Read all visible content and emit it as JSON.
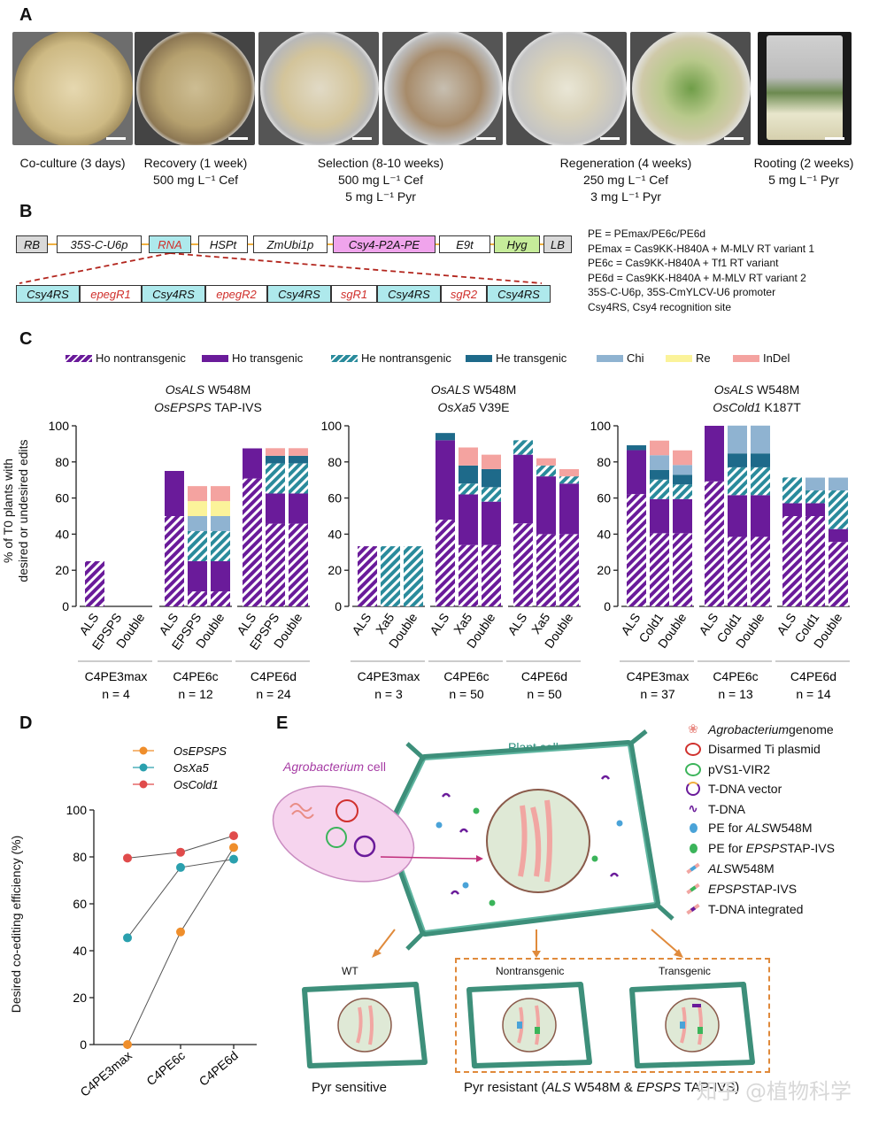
{
  "panel_a": {
    "letter": "A",
    "captions": [
      {
        "l1": "Co-culture (3 days)",
        "l2": "",
        "l3": ""
      },
      {
        "l1": "Recovery (1 week)",
        "l2": "500 mg L⁻¹ Cef",
        "l3": ""
      },
      {
        "l1": "Selection (8-10 weeks)",
        "l2": "500 mg L⁻¹  Cef",
        "l3": "5 mg L⁻¹ Pyr"
      },
      {
        "l1": "Regeneration (4 weeks)",
        "l2": "250 mg L⁻¹ Cef",
        "l3": "3 mg L⁻¹ Pyr"
      },
      {
        "l1": "Rooting (2 weeks)",
        "l2": "5 mg L⁻¹ Pyr",
        "l3": ""
      }
    ]
  },
  "panel_b": {
    "letter": "B",
    "construct": [
      "RB",
      "35S-C-U6p",
      "RNA",
      "HSPt",
      "ZmUbi1p",
      "Csy4-P2A-PE",
      "E9t",
      "Hyg",
      "LB"
    ],
    "array": [
      "Csy4RS",
      "epegR1",
      "Csy4RS",
      "epegR2",
      "Csy4RS",
      "sgR1",
      "Csy4RS",
      "sgR2",
      "Csy4RS"
    ],
    "legend": [
      "PE = PEmax/PE6c/PE6d",
      "PEmax = Cas9KK-H840A + M-MLV RT variant 1",
      "PE6c = Cas9KK-H840A + Tf1 RT variant",
      "PE6d = Cas9KK-H840A + M-MLV RT variant 2",
      "35S-C-U6p, 35S-CmYLCV-U6 promoter",
      "Csy4RS, Csy4 recognition site"
    ]
  },
  "panel_c": {
    "letter": "C",
    "legend": [
      "Ho nontransgenic",
      "Ho transgenic",
      "He nontransgenic",
      "He transgenic",
      "Chi",
      "Re",
      "InDel"
    ],
    "ylabel_1": "% of T0 plants with",
    "ylabel_2": "desired or undesired edits",
    "yticks": [
      "0",
      "20",
      "40",
      "60",
      "80",
      "100"
    ]
  },
  "chart_data": [
    {
      "type": "bar",
      "stacked": true,
      "title_gene_1": "OsALS",
      "title_mut_1": " W548M",
      "title_gene_2": "OsEPSPS",
      "title_mut_2": " TAP-IVS",
      "ylim": [
        0,
        100
      ],
      "categories": [
        "ALS",
        "EPSPS",
        "Double"
      ],
      "groups": [
        {
          "name": "C4PE3max",
          "n": "n = 4",
          "bars": [
            {
              "ho_non": 25,
              "ho_tr": 0,
              "he_non": 0,
              "he_tr": 0,
              "chi": 0,
              "re": 0,
              "indel": 0
            },
            {
              "ho_non": 0,
              "ho_tr": 0,
              "he_non": 0,
              "he_tr": 0,
              "chi": 0,
              "re": 0,
              "indel": 0
            },
            {
              "ho_non": 0,
              "ho_tr": 0,
              "he_non": 0,
              "he_tr": 0,
              "chi": 0,
              "re": 0,
              "indel": 0
            }
          ]
        },
        {
          "name": "C4PE6c",
          "n": "n = 12",
          "bars": [
            {
              "ho_non": 50,
              "ho_tr": 25,
              "he_non": 0,
              "he_tr": 0,
              "chi": 0,
              "re": 0,
              "indel": 0
            },
            {
              "ho_non": 8.3,
              "ho_tr": 16.7,
              "he_non": 16.7,
              "he_tr": 0,
              "chi": 8.3,
              "re": 8.3,
              "indel": 8.3
            },
            {
              "ho_non": 8.3,
              "ho_tr": 16.7,
              "he_non": 16.7,
              "he_tr": 0,
              "chi": 8.3,
              "re": 8.3,
              "indel": 8.3
            }
          ]
        },
        {
          "name": "C4PE6d",
          "n": "n = 24",
          "bars": [
            {
              "ho_non": 70.8,
              "ho_tr": 16.7,
              "he_non": 0,
              "he_tr": 0,
              "chi": 0,
              "re": 0,
              "indel": 0
            },
            {
              "ho_non": 45.8,
              "ho_tr": 16.7,
              "he_non": 16.7,
              "he_tr": 4.2,
              "chi": 0,
              "re": 0,
              "indel": 4.2
            },
            {
              "ho_non": 45.8,
              "ho_tr": 16.7,
              "he_non": 16.7,
              "he_tr": 4.2,
              "chi": 0,
              "re": 0,
              "indel": 4.2
            }
          ]
        }
      ]
    },
    {
      "type": "bar",
      "stacked": true,
      "title_gene_1": "OsALS",
      "title_mut_1": " W548M",
      "title_gene_2": "OsXa5",
      "title_mut_2": " V39E",
      "ylim": [
        0,
        100
      ],
      "categories": [
        "ALS",
        "Xa5",
        "Double"
      ],
      "groups": [
        {
          "name": "C4PE3max",
          "n": "n = 3",
          "bars": [
            {
              "ho_non": 33.3,
              "ho_tr": 0,
              "he_non": 0,
              "he_tr": 0,
              "chi": 0,
              "re": 0,
              "indel": 0
            },
            {
              "ho_non": 0,
              "ho_tr": 0,
              "he_non": 33.3,
              "he_tr": 0,
              "chi": 0,
              "re": 0,
              "indel": 0
            },
            {
              "ho_non": 0,
              "ho_tr": 0,
              "he_non": 33.3,
              "he_tr": 0,
              "chi": 0,
              "re": 0,
              "indel": 0
            }
          ]
        },
        {
          "name": "C4PE6c",
          "n": "n = 50",
          "bars": [
            {
              "ho_non": 48,
              "ho_tr": 44,
              "he_non": 0,
              "he_tr": 4,
              "chi": 0,
              "re": 0,
              "indel": 0
            },
            {
              "ho_non": 34,
              "ho_tr": 28,
              "he_non": 6,
              "he_tr": 10,
              "chi": 0,
              "re": 0,
              "indel": 10
            },
            {
              "ho_non": 34,
              "ho_tr": 24,
              "he_non": 8,
              "he_tr": 10,
              "chi": 0,
              "re": 0,
              "indel": 8
            }
          ]
        },
        {
          "name": "C4PE6d",
          "n": "n = 50",
          "bars": [
            {
              "ho_non": 46,
              "ho_tr": 38,
              "he_non": 8,
              "he_tr": 0,
              "chi": 0,
              "re": 0,
              "indel": 0
            },
            {
              "ho_non": 40,
              "ho_tr": 32,
              "he_non": 6,
              "he_tr": 0,
              "chi": 0,
              "re": 0,
              "indel": 4
            },
            {
              "ho_non": 40,
              "ho_tr": 28,
              "he_non": 4,
              "he_tr": 0,
              "chi": 0,
              "re": 0,
              "indel": 4
            }
          ]
        }
      ]
    },
    {
      "type": "bar",
      "stacked": true,
      "title_gene_1": "OsALS",
      "title_mut_1": " W548M",
      "title_gene_2": "OsCold1",
      "title_mut_2": " K187T",
      "ylim": [
        0,
        100
      ],
      "categories": [
        "ALS",
        "Cold1",
        "Double"
      ],
      "groups": [
        {
          "name": "C4PE3max",
          "n": "n = 37",
          "bars": [
            {
              "ho_non": 62.2,
              "ho_tr": 24.3,
              "he_non": 0,
              "he_tr": 2.7,
              "chi": 0,
              "re": 0,
              "indel": 0
            },
            {
              "ho_non": 40.5,
              "ho_tr": 18.9,
              "he_non": 10.8,
              "he_tr": 5.4,
              "chi": 8.1,
              "re": 0,
              "indel": 8.1
            },
            {
              "ho_non": 40.5,
              "ho_tr": 18.9,
              "he_non": 8.1,
              "he_tr": 5.4,
              "chi": 5.4,
              "re": 0,
              "indel": 8.1
            }
          ]
        },
        {
          "name": "C4PE6c",
          "n": "n = 13",
          "bars": [
            {
              "ho_non": 69.2,
              "ho_tr": 30.8,
              "he_non": 0,
              "he_tr": 0,
              "chi": 0,
              "re": 0,
              "indel": 0
            },
            {
              "ho_non": 38.5,
              "ho_tr": 23.1,
              "he_non": 15.4,
              "he_tr": 7.7,
              "chi": 15.4,
              "re": 0,
              "indel": 0
            },
            {
              "ho_non": 38.5,
              "ho_tr": 23.1,
              "he_non": 15.4,
              "he_tr": 7.7,
              "chi": 15.4,
              "re": 0,
              "indel": 0
            }
          ]
        },
        {
          "name": "C4PE6d",
          "n": "n = 14",
          "bars": [
            {
              "ho_non": 50,
              "ho_tr": 7.1,
              "he_non": 14.3,
              "he_tr": 0,
              "chi": 0,
              "re": 0,
              "indel": 0
            },
            {
              "ho_non": 50,
              "ho_tr": 7.1,
              "he_non": 7.1,
              "he_tr": 0,
              "chi": 7.1,
              "re": 0,
              "indel": 0
            },
            {
              "ho_non": 35.7,
              "ho_tr": 7.1,
              "he_non": 21.4,
              "he_tr": 0,
              "chi": 7.1,
              "re": 0,
              "indel": 0
            }
          ]
        }
      ]
    },
    {
      "type": "line",
      "ylabel": "Desired co-editing efficiency (%)",
      "ylim": [
        0,
        100
      ],
      "yticks": [
        "0",
        "20",
        "40",
        "60",
        "80",
        "100"
      ],
      "x": [
        "C4PE3max",
        "C4PE6c",
        "C4PE6d"
      ],
      "series": [
        {
          "name": "OsEPSPS",
          "color": "#ef8e2b",
          "values": [
            0,
            48,
            84
          ]
        },
        {
          "name": "OsXa5",
          "color": "#2aa0ae",
          "values": [
            45.5,
            75.5,
            79
          ]
        },
        {
          "name": "OsCold1",
          "color": "#e04b4b",
          "values": [
            79.5,
            82,
            89
          ]
        }
      ]
    }
  ],
  "panel_d": {
    "letter": "D"
  },
  "panel_e": {
    "letter": "E",
    "agro_label": "Agrobacterium",
    "agro_label_suffix": " cell",
    "plant_label": "Plant cell",
    "wt_label": "WT",
    "nontransgenic_label": "Nontransgenic",
    "transgenic_label": "Transgenic",
    "pyr_sensitive": "Pyr sensitive",
    "pyr_resistant_pre": "Pyr resistant (",
    "pyr_resistant_gene1": "ALS",
    "pyr_resistant_mid": " W548M & ",
    "pyr_resistant_gene2": "EPSPS",
    "pyr_resistant_post": " TAP-IVS)",
    "legend": [
      {
        "italic": "Agrobacterium",
        "text": " genome",
        "icon": "genome-icon"
      },
      {
        "italic": "",
        "text": "Disarmed Ti plasmid",
        "icon": "ti-plasmid-icon"
      },
      {
        "italic": "",
        "text": "pVS1-VIR2",
        "icon": "pvs1-vir2-icon"
      },
      {
        "italic": "",
        "text": "T-DNA vector",
        "icon": "tdna-vector-icon"
      },
      {
        "italic": "",
        "text": "T-DNA",
        "icon": "tdna-icon"
      },
      {
        "italic_pre": "PE for ",
        "italic": "ALS",
        "text": " W548M",
        "icon": "pe-als-icon"
      },
      {
        "italic_pre": "PE for ",
        "italic": "EPSPS",
        "text": " TAP-IVS",
        "icon": "pe-epsps-icon"
      },
      {
        "italic": "ALS",
        "text": " W548M",
        "icon": "als-locus-icon"
      },
      {
        "italic": "EPSPS",
        "text": " TAP-IVS",
        "icon": "epsps-locus-icon"
      },
      {
        "italic": "",
        "text": "T-DNA integrated",
        "icon": "tdna-integrated-icon"
      }
    ]
  },
  "watermark": "知乎 @植物科学",
  "colors": {
    "ho": "#6a1b9a",
    "he": "#2a8b9c",
    "he_tr": "#1e6a8a",
    "chi": "#8fb3d1",
    "re": "#fbf39a",
    "indel": "#f4a3a0"
  }
}
